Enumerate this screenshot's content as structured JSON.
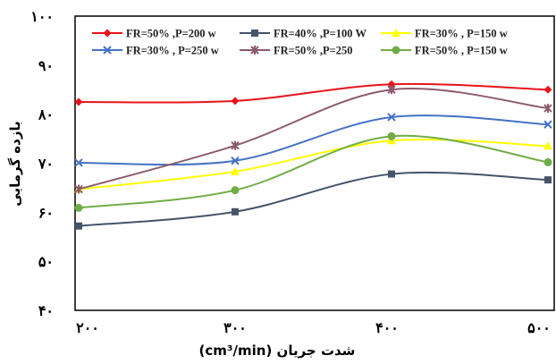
{
  "chart_data": {
    "type": "line",
    "xlabel": "شدت جریان (cm³/min)",
    "ylabel": "بازده گرمایی",
    "x": [
      200,
      300,
      400,
      500
    ],
    "x_tick_labels": [
      "۲۰۰",
      "۳۰۰",
      "۴۰۰",
      "۵۰۰"
    ],
    "ylim": [
      40,
      100
    ],
    "yticks": [
      40,
      50,
      60,
      70,
      80,
      90,
      100
    ],
    "y_tick_labels": [
      "۴۰",
      "۵۰",
      "۶۰",
      "۷۰",
      "۸۰",
      "۹۰",
      "۱۰۰"
    ],
    "grid": false,
    "legend_placement": "top",
    "smooth": true,
    "series": [
      {
        "name": "FR=50% ,P=200 w",
        "values": [
          82.5,
          82.7,
          86.1,
          85.0
        ],
        "color": "#e8141b",
        "marker": "diamond"
      },
      {
        "name": "FR=40% ,P=100 W",
        "values": [
          57.2,
          60.1,
          67.8,
          66.6
        ],
        "color": "#44546a",
        "marker": "square"
      },
      {
        "name": "FR=30% , P=150 w",
        "values": [
          64.7,
          68.3,
          74.6,
          73.5
        ],
        "color": "#ffff00",
        "marker": "triangle"
      },
      {
        "name": "FR=30% , P=250 w",
        "values": [
          70.1,
          70.5,
          79.4,
          77.9
        ],
        "color": "#4472c4",
        "marker": "x"
      },
      {
        "name": "FR=50% ,P=250",
        "values": [
          64.7,
          73.6,
          85.0,
          81.2
        ],
        "color": "#8c5a6e",
        "marker": "star"
      },
      {
        "name": "FR=50% , P=150 w",
        "values": [
          60.9,
          64.5,
          75.5,
          70.2
        ],
        "color": "#70ad47",
        "marker": "circle"
      }
    ]
  }
}
